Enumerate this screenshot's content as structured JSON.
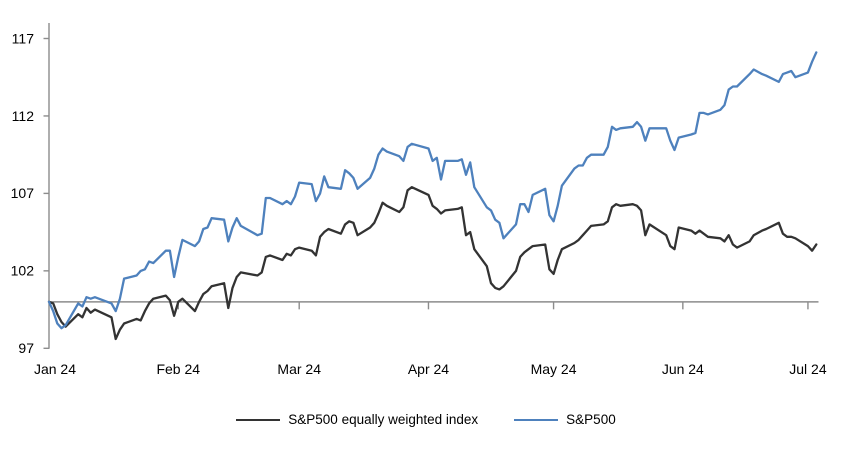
{
  "page": {
    "background": "#ffffff"
  },
  "legend": {
    "items": [
      {
        "label": "S&P500 equally weighted index",
        "color": "#333333"
      },
      {
        "label": "S&P500",
        "color": "#4E81BD"
      }
    ]
  },
  "chart_data": {
    "type": "line",
    "title": "",
    "grid": false,
    "legend_position": "bottom-center",
    "axis_color": "#8C8C8C",
    "text_color": "#000000",
    "x_axis": {
      "unit": "day_of_year_2024",
      "tick_labels": [
        "Jan 24",
        "Feb 24",
        "Mar 24",
        "Apr 24",
        "May 24",
        "Jun 24",
        "Jul 24"
      ],
      "tick_days": [
        1,
        32,
        61,
        92,
        122,
        153,
        183
      ]
    },
    "y_axis": {
      "ticks": [
        97,
        102,
        107,
        112,
        117
      ],
      "range": [
        97,
        118
      ],
      "baseline": 100
    },
    "days": [
      1,
      2,
      3,
      4,
      5,
      8,
      9,
      10,
      11,
      12,
      16,
      17,
      18,
      19,
      22,
      23,
      24,
      25,
      26,
      29,
      30,
      31,
      32,
      33,
      36,
      37,
      38,
      39,
      40,
      43,
      44,
      45,
      46,
      47,
      51,
      52,
      53,
      54,
      57,
      58,
      59,
      60,
      61,
      64,
      65,
      66,
      67,
      68,
      71,
      72,
      73,
      74,
      75,
      78,
      79,
      80,
      81,
      82,
      85,
      86,
      87,
      88,
      92,
      93,
      94,
      95,
      96,
      99,
      100,
      101,
      102,
      103,
      106,
      107,
      108,
      109,
      110,
      113,
      114,
      115,
      116,
      117,
      120,
      121,
      122,
      123,
      124,
      127,
      128,
      129,
      130,
      131,
      134,
      135,
      136,
      137,
      138,
      141,
      142,
      143,
      144,
      145,
      149,
      150,
      151,
      152,
      155,
      156,
      157,
      158,
      159,
      162,
      163,
      164,
      165,
      166,
      169,
      170,
      172,
      173,
      176,
      177,
      178,
      179,
      180,
      183,
      184,
      185
    ],
    "series": [
      {
        "name": "S&P500 equally weighted index",
        "color": "#333333",
        "values": [
          100.0,
          99.9,
          99.2,
          98.7,
          98.4,
          99.2,
          99.0,
          99.6,
          99.3,
          99.5,
          99.0,
          97.6,
          98.2,
          98.6,
          98.9,
          98.8,
          99.4,
          99.9,
          100.2,
          100.4,
          100.1,
          99.1,
          100.0,
          100.2,
          99.4,
          100.0,
          100.5,
          100.7,
          101.0,
          101.2,
          99.6,
          100.9,
          101.6,
          101.9,
          101.7,
          101.9,
          102.9,
          103.0,
          102.7,
          103.1,
          103.0,
          103.4,
          103.5,
          103.3,
          103.0,
          104.2,
          104.5,
          104.7,
          104.4,
          105.0,
          105.2,
          105.1,
          104.3,
          104.8,
          105.1,
          105.7,
          106.4,
          106.2,
          105.8,
          106.1,
          107.2,
          107.4,
          106.9,
          106.2,
          106.0,
          105.7,
          105.9,
          106.0,
          106.1,
          104.3,
          104.5,
          103.4,
          102.3,
          101.2,
          100.9,
          100.8,
          101.0,
          102.0,
          102.9,
          103.2,
          103.4,
          103.6,
          103.7,
          102.1,
          101.8,
          102.7,
          103.4,
          103.8,
          104.0,
          104.3,
          104.6,
          104.9,
          105.0,
          105.2,
          106.1,
          106.3,
          106.2,
          106.3,
          106.2,
          105.9,
          104.3,
          105.0,
          104.3,
          103.6,
          103.4,
          104.8,
          104.6,
          104.4,
          104.6,
          104.4,
          104.2,
          104.1,
          103.9,
          104.3,
          103.7,
          103.5,
          103.9,
          104.3,
          104.6,
          104.7,
          105.1,
          104.4,
          104.2,
          104.2,
          104.1,
          103.6,
          103.3,
          103.7
        ]
      },
      {
        "name": "S&P500",
        "color": "#4E81BD",
        "values": [
          100.0,
          99.4,
          98.6,
          98.3,
          98.5,
          99.9,
          99.7,
          100.3,
          100.2,
          100.3,
          99.9,
          99.4,
          100.2,
          101.5,
          101.7,
          102.0,
          102.1,
          102.6,
          102.5,
          103.3,
          103.3,
          101.6,
          102.9,
          104.0,
          103.6,
          103.9,
          104.7,
          104.8,
          105.4,
          105.3,
          103.9,
          104.8,
          105.4,
          104.9,
          104.3,
          104.4,
          106.7,
          106.7,
          106.3,
          106.5,
          106.3,
          106.8,
          107.7,
          107.6,
          106.5,
          107.0,
          108.1,
          107.4,
          107.3,
          108.5,
          108.3,
          108.0,
          107.3,
          108.0,
          108.6,
          109.5,
          109.9,
          109.7,
          109.4,
          109.1,
          110.0,
          110.2,
          109.9,
          109.1,
          109.3,
          107.9,
          109.1,
          109.1,
          109.2,
          108.2,
          109.0,
          107.4,
          106.1,
          105.9,
          105.3,
          105.1,
          104.1,
          105.0,
          106.3,
          106.3,
          105.8,
          106.9,
          107.3,
          105.6,
          105.2,
          106.2,
          107.5,
          108.6,
          108.8,
          108.8,
          109.3,
          109.5,
          109.5,
          110.0,
          111.3,
          111.1,
          111.2,
          111.3,
          111.6,
          111.3,
          110.4,
          111.2,
          111.2,
          110.4,
          109.8,
          110.6,
          110.8,
          110.9,
          112.2,
          112.2,
          112.1,
          112.4,
          112.7,
          113.7,
          113.9,
          113.9,
          114.7,
          115.0,
          114.7,
          114.6,
          114.2,
          114.7,
          114.8,
          114.9,
          114.5,
          114.8,
          115.5,
          116.1
        ]
      }
    ]
  }
}
